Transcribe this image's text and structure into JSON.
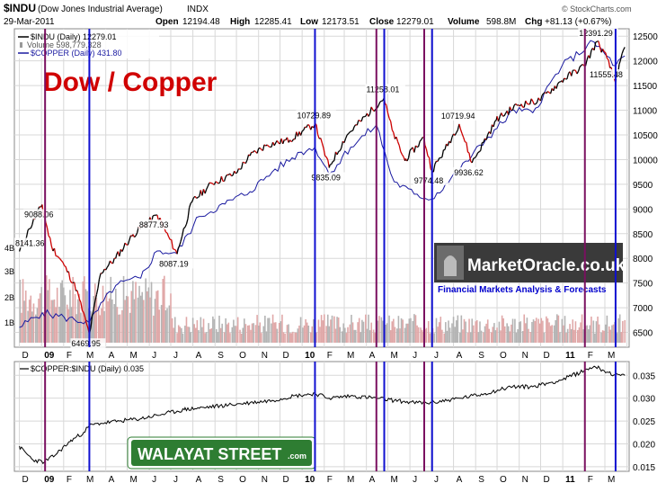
{
  "header": {
    "symbol": "$INDU",
    "name": "(Dow Jones Industrial Average)",
    "exchange": "INDX",
    "date": "29-Mar-2011",
    "open_label": "Open",
    "open": "12194.48",
    "high_label": "High",
    "high": "12285.41",
    "low_label": "Low",
    "low": "12173.51",
    "close_label": "Close",
    "close": "12279.01",
    "volume_label": "Volume",
    "volume": "598.8M",
    "chg_label": "Chg",
    "chg": "+81.13 (+0.67%)",
    "copyright": "© StockCharts.com"
  },
  "legend": {
    "indu": "$INDU (Daily) 12279.01",
    "volume": "Volume 598,779,328",
    "copper": "$COPPER (Daily) 431.80"
  },
  "overlay_title": "Dow / Copper",
  "market_oracle": {
    "title": "MarketOracle.co.uk",
    "subtitle": "Financial Markets Analysis & Forecasts"
  },
  "walayat": {
    "text": "WALAYAT STREET",
    "suffix": ".com"
  },
  "lower_panel": {
    "label": "$COPPER:$INDU (Daily) 0.035"
  },
  "colors": {
    "up": "#000000",
    "down": "#cc0000",
    "copper": "#1a1aa0",
    "volume_up": "#b4b4b4",
    "volume_down": "#e0a8a8",
    "blue_line": "#1010d0",
    "purple_line": "#7a1060",
    "title_red": "#d00000",
    "walayat_green": "#2e7d32",
    "oracle_blue": "#0000cc"
  },
  "chart_data": [
    {
      "type": "line",
      "series": [
        {
          "name": "$INDU",
          "x": [
            "2008-12-01",
            "2008-12-15",
            "2009-01-02",
            "2009-01-15",
            "2009-02-02",
            "2009-02-20",
            "2009-03-09",
            "2009-03-25",
            "2009-04-15",
            "2009-05-08",
            "2009-06-12",
            "2009-07-10",
            "2009-07-31",
            "2009-08-28",
            "2009-09-30",
            "2009-10-20",
            "2009-11-13",
            "2009-12-15",
            "2010-01-19",
            "2010-02-08",
            "2010-03-05",
            "2010-04-26",
            "2010-05-07",
            "2010-05-25",
            "2010-06-21",
            "2010-07-02",
            "2010-07-20",
            "2010-08-09",
            "2010-08-27",
            "2010-09-30",
            "2010-10-29",
            "2010-11-30",
            "2010-12-31",
            "2011-01-31",
            "2011-02-18",
            "2011-03-04",
            "2011-03-16",
            "2011-03-29"
          ],
          "values": [
            8141.36,
            8600,
            9088.06,
            8250,
            7850,
            7350,
            6469.95,
            7700,
            8000,
            8450,
            8877.93,
            8087.19,
            9150,
            9520,
            9720,
            10080,
            10300,
            10400,
            10729.89,
            9835.09,
            10500,
            11258.01,
            10600,
            9974.48,
            10450,
            9774.48,
            10200,
            10719.94,
            9936.62,
            10800,
            11100,
            11200,
            11600,
            11900,
            12391.29,
            12050,
            11555.48,
            12279.01
          ]
        },
        {
          "name": "$COPPER",
          "unit": "price level mapped on the chart",
          "values_note_free": true,
          "x": [
            "2008-12-01",
            "2009-01-02",
            "2009-02-02",
            "2009-03-09",
            "2009-04-15",
            "2009-05-20",
            "2009-06-12",
            "2009-07-10",
            "2009-08-10",
            "2009-09-15",
            "2009-10-20",
            "2009-11-20",
            "2009-12-31",
            "2010-01-19",
            "2010-02-08",
            "2010-03-10",
            "2010-04-15",
            "2010-05-10",
            "2010-06-07",
            "2010-07-02",
            "2010-08-10",
            "2010-09-15",
            "2010-10-25",
            "2010-11-20",
            "2010-12-31",
            "2011-02-14",
            "2011-03-16",
            "2011-03-29"
          ],
          "values": [
            6600,
            6900,
            6800,
            6700,
            7450,
            7600,
            8150,
            8100,
            8850,
            9100,
            9350,
            9750,
            10150,
            10250,
            9700,
            10250,
            10700,
            9550,
            9300,
            9200,
            9800,
            10400,
            11000,
            10950,
            11900,
            12380,
            11900,
            12100
          ]
        }
      ],
      "ylim": [
        6200,
        12650
      ],
      "ytick_labels": [
        "6500",
        "7000",
        "7500",
        "8000",
        "8500",
        "9000",
        "9500",
        "10000",
        "10500",
        "11000",
        "11500",
        "12000",
        "12500"
      ],
      "volume_labels": [
        "1B",
        "2B",
        "3B",
        "4B"
      ],
      "xtick_labels": [
        "D",
        "09",
        "F",
        "M",
        "A",
        "M",
        "J",
        "J",
        "A",
        "S",
        "O",
        "N",
        "D",
        "10",
        "F",
        "M",
        "A",
        "M",
        "J",
        "J",
        "A",
        "S",
        "O",
        "N",
        "D",
        "11",
        "F",
        "M"
      ],
      "annotations": [
        "9088.06",
        "8141.36",
        "8877.93",
        "8087.19",
        "6469.95",
        "10729.89",
        "9835.09",
        "11258.01",
        "9774.48",
        "10719.94",
        "9936.62",
        "12391.29",
        "11555.48"
      ],
      "grid": true
    },
    {
      "type": "line",
      "series": [
        {
          "name": "$COPPER:$INDU",
          "x": [
            "2008-12-01",
            "2008-12-20",
            "2009-01-05",
            "2009-01-20",
            "2009-02-10",
            "2009-03-01",
            "2009-03-09",
            "2009-03-25",
            "2009-04-20",
            "2009-05-20",
            "2009-06-20",
            "2009-07-20",
            "2009-08-20",
            "2009-09-20",
            "2009-10-20",
            "2009-11-20",
            "2009-12-20",
            "2010-01-19",
            "2010-02-08",
            "2010-03-10",
            "2010-04-15",
            "2010-05-10",
            "2010-06-07",
            "2010-07-02",
            "2010-08-10",
            "2010-09-15",
            "2010-10-20",
            "2010-11-20",
            "2010-12-31",
            "2011-01-31",
            "2011-02-14",
            "2011-03-16",
            "2011-03-29"
          ],
          "values": [
            0.0195,
            0.0165,
            0.016,
            0.0175,
            0.0205,
            0.0225,
            0.024,
            0.0245,
            0.025,
            0.0255,
            0.0265,
            0.0275,
            0.028,
            0.0285,
            0.029,
            0.0295,
            0.0305,
            0.031,
            0.03,
            0.0305,
            0.03,
            0.0295,
            0.029,
            0.029,
            0.03,
            0.031,
            0.0325,
            0.0325,
            0.034,
            0.036,
            0.037,
            0.035,
            0.035
          ]
        }
      ],
      "ylim": [
        0.014,
        0.038
      ],
      "ytick_labels": [
        "0.015",
        "0.020",
        "0.025",
        "0.030",
        "0.035"
      ],
      "xtick_labels": [
        "D",
        "09",
        "F",
        "M",
        "A",
        "M",
        "J",
        "J",
        "A",
        "S",
        "O",
        "N",
        "D",
        "10",
        "F",
        "M",
        "A",
        "M",
        "J",
        "J",
        "A",
        "S",
        "O",
        "N",
        "D",
        "11",
        "F",
        "M"
      ],
      "grid": true
    }
  ],
  "vertical_markers": {
    "blue": [
      "2009-03-09",
      "2010-01-19",
      "2010-04-26",
      "2010-07-02",
      "2011-03-16"
    ],
    "purple": [
      "2009-01-06",
      "2010-04-15",
      "2010-06-21",
      "2011-02-01"
    ]
  }
}
